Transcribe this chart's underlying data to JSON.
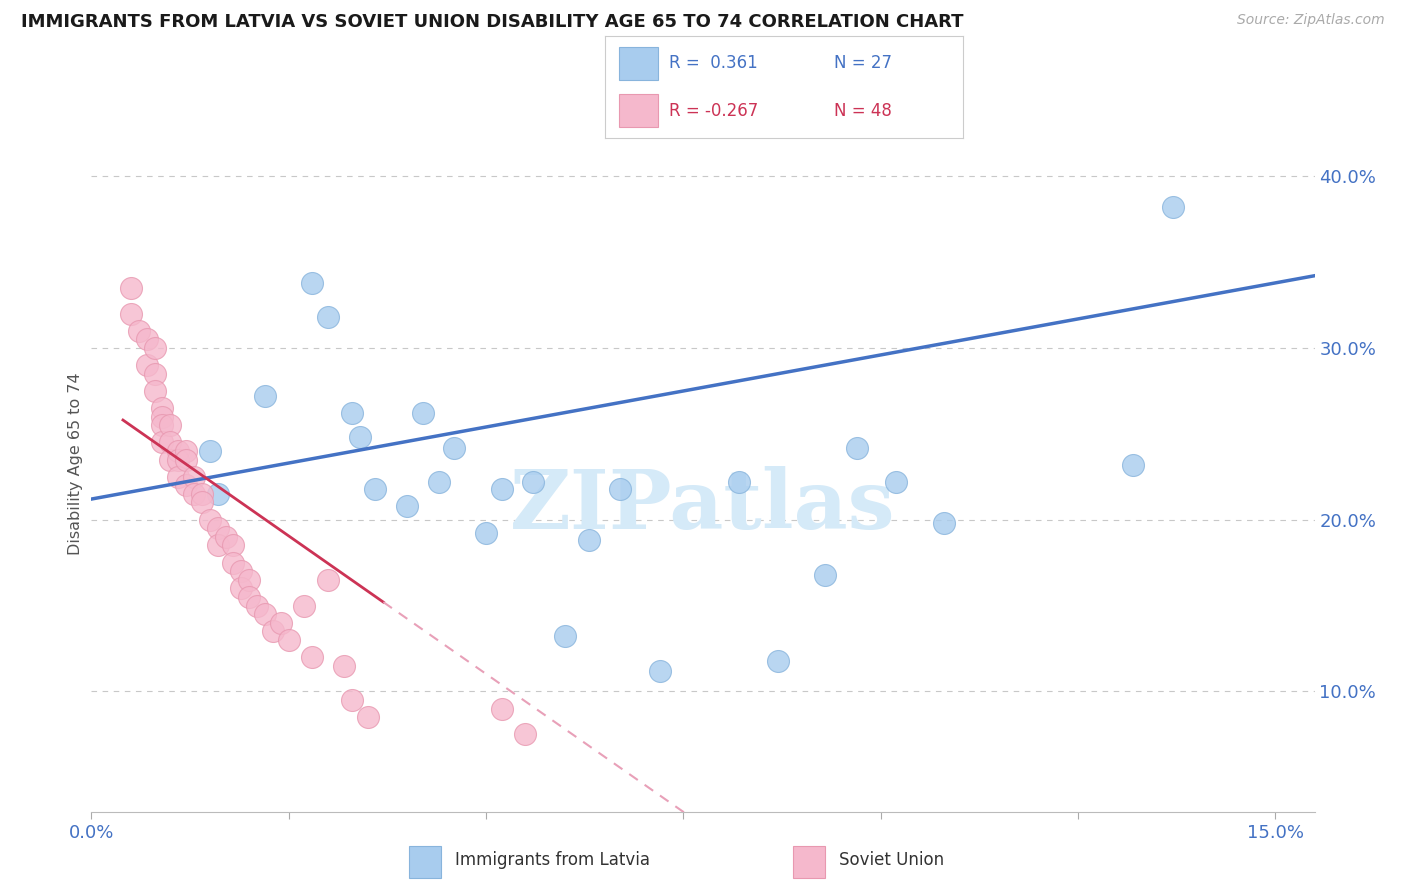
{
  "title": "IMMIGRANTS FROM LATVIA VS SOVIET UNION DISABILITY AGE 65 TO 74 CORRELATION CHART",
  "source": "Source: ZipAtlas.com",
  "ylabel": "Disability Age 65 to 74",
  "xlim": [
    0.0,
    0.155
  ],
  "ylim": [
    0.03,
    0.435
  ],
  "ytick_vals": [
    0.1,
    0.2,
    0.3,
    0.4
  ],
  "ytick_labels": [
    "10.0%",
    "20.0%",
    "30.0%",
    "40.0%"
  ],
  "xtick_vals": [
    0.0,
    0.025,
    0.05,
    0.075,
    0.1,
    0.125,
    0.15
  ],
  "xtick_labels": [
    "0.0%",
    "",
    "",
    "",
    "",
    "",
    "15.0%"
  ],
  "grid_color": "#c8c8c8",
  "bg_color": "#ffffff",
  "latvia_color": "#a8ccee",
  "soviet_color": "#f5b8cc",
  "latvia_edge": "#88b4dc",
  "soviet_edge": "#e898b0",
  "trend_latvia": "#4472c4",
  "trend_soviet_solid": "#cc3355",
  "trend_soviet_dash": "#e8a0b8",
  "text_blue": "#4472c4",
  "text_dark": "#1a1a1a",
  "source_color": "#aaaaaa",
  "watermark_color": "#d5eaf8",
  "latvia_R": 0.361,
  "latvia_N": 27,
  "soviet_R": -0.267,
  "soviet_N": 48,
  "latvia_x": [
    0.015,
    0.016,
    0.022,
    0.028,
    0.03,
    0.033,
    0.034,
    0.036,
    0.04,
    0.042,
    0.044,
    0.046,
    0.05,
    0.052,
    0.056,
    0.06,
    0.063,
    0.067,
    0.072,
    0.082,
    0.087,
    0.093,
    0.097,
    0.102,
    0.108,
    0.132,
    0.137
  ],
  "latvia_y": [
    0.24,
    0.215,
    0.272,
    0.338,
    0.318,
    0.262,
    0.248,
    0.218,
    0.208,
    0.262,
    0.222,
    0.242,
    0.192,
    0.218,
    0.222,
    0.132,
    0.188,
    0.218,
    0.112,
    0.222,
    0.118,
    0.168,
    0.242,
    0.222,
    0.198,
    0.232,
    0.382
  ],
  "soviet_x": [
    0.005,
    0.005,
    0.006,
    0.007,
    0.007,
    0.008,
    0.008,
    0.008,
    0.009,
    0.009,
    0.009,
    0.009,
    0.01,
    0.01,
    0.01,
    0.011,
    0.011,
    0.011,
    0.012,
    0.012,
    0.012,
    0.013,
    0.013,
    0.014,
    0.014,
    0.015,
    0.016,
    0.016,
    0.017,
    0.018,
    0.018,
    0.019,
    0.019,
    0.02,
    0.02,
    0.021,
    0.022,
    0.023,
    0.024,
    0.025,
    0.027,
    0.028,
    0.03,
    0.032,
    0.033,
    0.035,
    0.052,
    0.055
  ],
  "soviet_y": [
    0.335,
    0.32,
    0.31,
    0.305,
    0.29,
    0.3,
    0.285,
    0.275,
    0.265,
    0.26,
    0.255,
    0.245,
    0.255,
    0.245,
    0.235,
    0.24,
    0.235,
    0.225,
    0.24,
    0.235,
    0.22,
    0.225,
    0.215,
    0.215,
    0.21,
    0.2,
    0.195,
    0.185,
    0.19,
    0.185,
    0.175,
    0.17,
    0.16,
    0.165,
    0.155,
    0.15,
    0.145,
    0.135,
    0.14,
    0.13,
    0.15,
    0.12,
    0.165,
    0.115,
    0.095,
    0.085,
    0.09,
    0.075
  ],
  "trend_latvia_x0": 0.0,
  "trend_latvia_y0": 0.212,
  "trend_latvia_x1": 0.155,
  "trend_latvia_y1": 0.342,
  "trend_soviet_x0": 0.004,
  "trend_soviet_y0": 0.258,
  "trend_soviet_x1": 0.037,
  "trend_soviet_y1": 0.152,
  "trend_soviet_dash_x1": 0.085
}
